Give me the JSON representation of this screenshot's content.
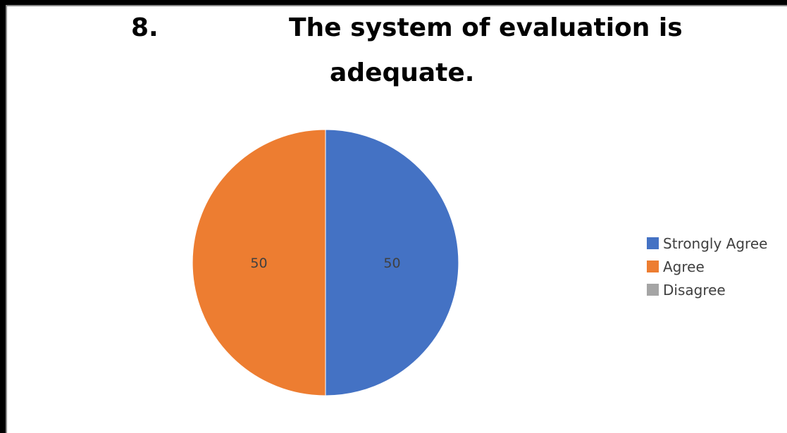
{
  "page": {
    "title_number": "8.",
    "title_line1": "The system of evaluation is",
    "title_line2": "adequate."
  },
  "chart_data": {
    "type": "pie",
    "title": "The system of evaluation is adequate.",
    "slices": [
      {
        "name": "Strongly Agree",
        "value": 50,
        "label": "50",
        "color": "#4472C4"
      },
      {
        "name": "Agree",
        "value": 50,
        "label": "50",
        "color": "#ED7D31"
      },
      {
        "name": "Disagree",
        "value": 0,
        "label": "",
        "color": "#A5A5A5"
      }
    ],
    "legend_position": "right",
    "start_angle": "12 o'clock, clockwise"
  }
}
